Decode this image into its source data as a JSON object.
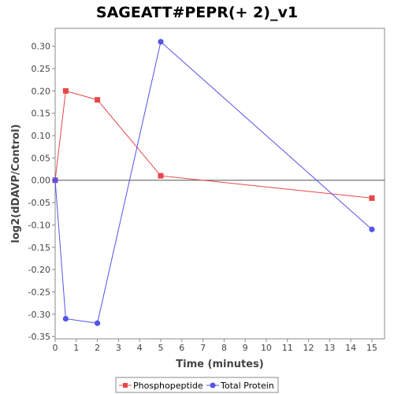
{
  "chart_data": {
    "type": "line",
    "title": "SAGEATT#PEPR(+ 2)_v1",
    "xlabel": "Time (minutes)",
    "ylabel": "log2(dDAVP/Control)",
    "xlim": [
      0,
      15.6
    ],
    "ylim": [
      -0.355,
      0.34
    ],
    "x_ticks": [
      0,
      1,
      2,
      3,
      4,
      5,
      6,
      7,
      8,
      9,
      10,
      11,
      12,
      13,
      14,
      15
    ],
    "y_ticks": [
      -0.35,
      -0.3,
      -0.25,
      -0.2,
      -0.15,
      -0.1,
      -0.05,
      0.0,
      0.05,
      0.1,
      0.15,
      0.2,
      0.25,
      0.3
    ],
    "y_tick_labels": [
      "-0.35",
      "-0.30",
      "-0.25",
      "-0.20",
      "-0.15",
      "-0.10",
      "-0.05",
      "0.00",
      "0.05",
      "0.10",
      "0.15",
      "0.20",
      "0.25",
      "0.30"
    ],
    "zero_line": true,
    "grid": false,
    "legend_position": "bottom",
    "series": [
      {
        "name": "Phosphopeptide",
        "color": "#e8474a",
        "marker": "square",
        "x": [
          0,
          0.5,
          2,
          5,
          15
        ],
        "y": [
          0.0,
          0.2,
          0.18,
          0.01,
          -0.04
        ]
      },
      {
        "name": "Total Protein",
        "color": "#5454e8",
        "marker": "circle",
        "x": [
          0,
          0.5,
          2,
          5,
          15
        ],
        "y": [
          0.0,
          -0.31,
          -0.32,
          0.31,
          -0.11
        ]
      }
    ]
  }
}
